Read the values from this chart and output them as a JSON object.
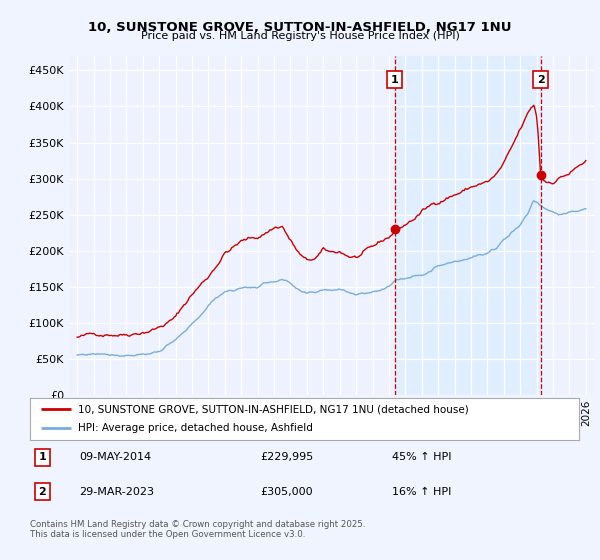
{
  "title": "10, SUNSTONE GROVE, SUTTON-IN-ASHFIELD, NG17 1NU",
  "subtitle": "Price paid vs. HM Land Registry's House Price Index (HPI)",
  "legend_line1": "10, SUNSTONE GROVE, SUTTON-IN-ASHFIELD, NG17 1NU (detached house)",
  "legend_line2": "HPI: Average price, detached house, Ashfield",
  "annotation1_label": "1",
  "annotation1_date": "09-MAY-2014",
  "annotation1_price": "£229,995",
  "annotation1_hpi": "45% ↑ HPI",
  "annotation2_label": "2",
  "annotation2_date": "29-MAR-2023",
  "annotation2_price": "£305,000",
  "annotation2_hpi": "16% ↑ HPI",
  "footer": "Contains HM Land Registry data © Crown copyright and database right 2025.\nThis data is licensed under the Open Government Licence v3.0.",
  "line1_color": "#cc0000",
  "line2_color": "#7aaddc",
  "shade_color": "#ddeeff",
  "background_color": "#f0f4ff",
  "plot_bg_color": "#eef2ff",
  "ylim": [
    0,
    470000
  ],
  "yticks": [
    0,
    50000,
    100000,
    150000,
    200000,
    250000,
    300000,
    350000,
    400000,
    450000
  ],
  "ytick_labels": [
    "£0",
    "£50K",
    "£100K",
    "£150K",
    "£200K",
    "£250K",
    "£300K",
    "£350K",
    "£400K",
    "£450K"
  ],
  "sale1_x": 2014.35,
  "sale1_y": 229995,
  "sale2_x": 2023.24,
  "sale2_y": 305000,
  "xmin": 1994.5,
  "xmax": 2026.5
}
